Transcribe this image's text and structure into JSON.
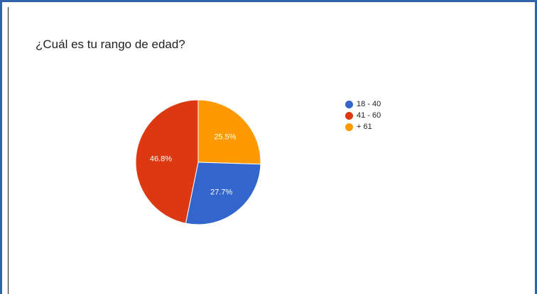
{
  "chart_data": {
    "type": "pie",
    "title": "¿Cuál es tu rango de edad?",
    "legend_position": "right",
    "slices": [
      {
        "label": "18 - 40",
        "value": 27.7,
        "display": "27.7%",
        "color": "#3366cc"
      },
      {
        "label": "41 - 60",
        "value": 46.8,
        "display": "46.8%",
        "color": "#dc3912"
      },
      {
        "label": "+ 61",
        "value": 25.5,
        "display": "25.5%",
        "color": "#ff9900"
      }
    ]
  }
}
